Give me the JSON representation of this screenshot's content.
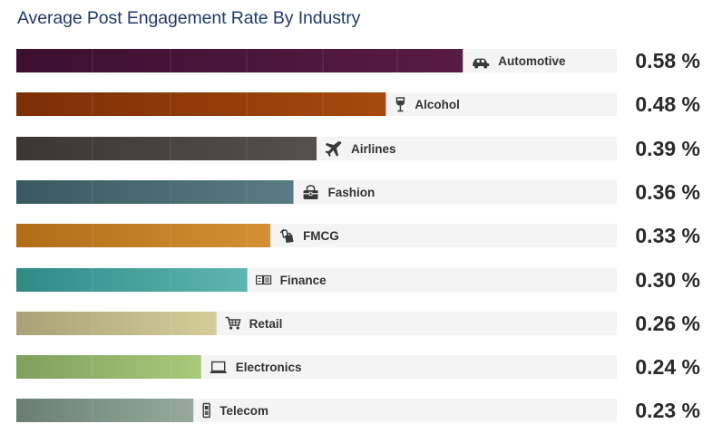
{
  "chart_data": {
    "type": "bar",
    "orientation": "horizontal",
    "title": "Average Post Engagement Rate By Industry",
    "value_suffix": " %",
    "xlim": [
      0,
      0.78
    ],
    "grid": false,
    "legend": "none",
    "categories": [
      "Automotive",
      "Alcohol",
      "Airlines",
      "Fashion",
      "FMCG",
      "Finance",
      "Retail",
      "Electronics",
      "Telecom"
    ],
    "values": [
      0.58,
      0.48,
      0.39,
      0.36,
      0.33,
      0.3,
      0.26,
      0.24,
      0.23
    ],
    "value_labels": [
      "0.58 %",
      "0.48 %",
      "0.39 %",
      "0.36 %",
      "0.33 %",
      "0.30 %",
      "0.26 %",
      "0.24 %",
      "0.23 %"
    ],
    "icons": [
      "car-icon",
      "wine-glass-icon",
      "airplane-icon",
      "handbag-icon",
      "shopping-bags-icon",
      "money-icon",
      "shopping-cart-icon",
      "laptop-icon",
      "phone-icon"
    ],
    "colors": [
      [
        "#3c0f30",
        "#571b45"
      ],
      [
        "#7c2e07",
        "#a44a0c"
      ],
      [
        "#3a3636",
        "#555050"
      ],
      [
        "#3a5863",
        "#597b84"
      ],
      [
        "#b06d17",
        "#d49033"
      ],
      [
        "#2f8a86",
        "#5db6af"
      ],
      [
        "#a9a277",
        "#d5cd99"
      ],
      [
        "#7fa05c",
        "#a8ca7a"
      ],
      [
        "#6a7f74",
        "#96a99c"
      ]
    ],
    "track_color": "#f4f4f5"
  }
}
